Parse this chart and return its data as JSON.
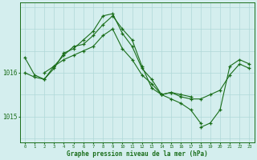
{
  "background_color": "#d4eeee",
  "grid_color": "#afd8d8",
  "line_color": "#1a6e1a",
  "xlabel": "Graphe pression niveau de la mer (hPa)",
  "ylabel_ticks": [
    1015,
    1016
  ],
  "xlim": [
    -0.5,
    23.5
  ],
  "ylim": [
    1014.4,
    1017.6
  ],
  "figsize": [
    3.2,
    2.0
  ],
  "dpi": 100,
  "series": [
    {
      "x": [
        0,
        1,
        2,
        3,
        4,
        5,
        6,
        7,
        8,
        9,
        10,
        11,
        12,
        13,
        14,
        15,
        16,
        17,
        18,
        19,
        20,
        21,
        22,
        23
      ],
      "y": [
        1016.35,
        1015.95,
        1015.85,
        1016.15,
        1016.3,
        1016.4,
        1016.5,
        1016.6,
        1016.85,
        1017.0,
        1016.55,
        1016.3,
        1015.95,
        1015.75,
        1015.5,
        1015.55,
        1015.45,
        1015.4,
        1015.4,
        1015.5,
        1015.6,
        1015.95,
        1016.2,
        1016.1
      ]
    },
    {
      "x": [
        0,
        1,
        2,
        3,
        4,
        5,
        6,
        7,
        8,
        9,
        10,
        11,
        12,
        13,
        14,
        15,
        16,
        17
      ],
      "y": [
        1016.0,
        1015.9,
        1015.85,
        1016.1,
        1016.45,
        1016.55,
        1016.75,
        1016.95,
        1017.3,
        1017.35,
        1016.9,
        1016.6,
        1016.1,
        1015.85,
        1015.5,
        1015.55,
        1015.5,
        1015.45
      ]
    },
    {
      "x": [
        2,
        3,
        4,
        5,
        6,
        7,
        8,
        9,
        10,
        11,
        12,
        13,
        14,
        15,
        16,
        17,
        18
      ],
      "y": [
        1016.0,
        1016.15,
        1016.4,
        1016.6,
        1016.65,
        1016.85,
        1017.1,
        1017.3,
        1017.0,
        1016.75,
        1016.15,
        1015.65,
        1015.5,
        1015.4,
        1015.3,
        1015.15,
        1014.85
      ]
    },
    {
      "x": [
        18,
        19,
        20,
        21,
        22,
        23
      ],
      "y": [
        1014.75,
        1014.85,
        1015.15,
        1016.15,
        1016.3,
        1016.2
      ]
    }
  ]
}
